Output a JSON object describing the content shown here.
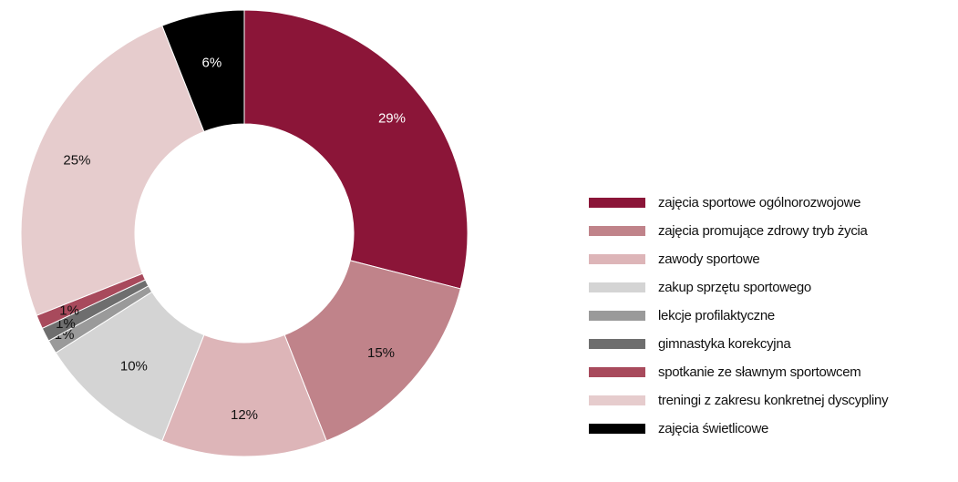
{
  "chart_data": {
    "type": "pie",
    "donut": true,
    "legend_position": "right",
    "categories": [
      "zajęcia sportowe ogólnorozwojowe",
      "zajęcia promujące zdrowy tryb życia",
      "zawody sportowe",
      "zakup sprzętu sportowego",
      "lekcje profilaktyczne",
      "gimnastyka korekcyjna",
      "spotkanie ze sławnym sportowcem",
      "treningi z zakresu konkretnej dyscypliny",
      "zajęcia świetlicowe"
    ],
    "values": [
      29,
      15,
      12,
      10,
      1,
      1,
      1,
      25,
      6
    ],
    "labels": [
      "29%",
      "15%",
      "12%",
      "10%",
      "1%",
      "1%",
      "1%",
      "25%",
      "6%"
    ],
    "colors": [
      "#8b1538",
      "#c0838a",
      "#ddb5b8",
      "#d4d4d4",
      "#9a9a9a",
      "#6e6e6e",
      "#a84a5c",
      "#e6cccd",
      "#000000"
    ],
    "label_colors": [
      "#ffffff",
      "#111111",
      "#111111",
      "#111111",
      "#111111",
      "#111111",
      "#111111",
      "#111111",
      "#ffffff"
    ]
  }
}
